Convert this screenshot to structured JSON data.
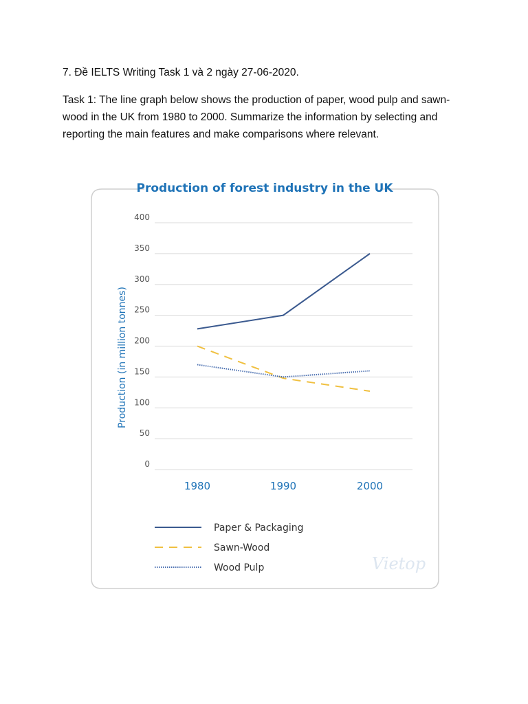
{
  "document": {
    "heading": "7. Đề IELTS Writing Task 1 và 2 ngày 27-06-2020.",
    "task_text": "Task 1: The line graph below shows the production of paper, wood pulp and sawn-wood in the UK from 1980 to 2000. Summarize the information by selecting and reporting the main features and make comparisons where relevant."
  },
  "chart_data": {
    "type": "line",
    "title": "Production of forest industry in the UK",
    "ylabel": "Production (in million tonnes)",
    "xlabel": "",
    "categories": [
      "1980",
      "1990",
      "2000"
    ],
    "ylim": [
      0,
      400
    ],
    "yticks": [
      0,
      50,
      100,
      150,
      200,
      250,
      300,
      350,
      400
    ],
    "grid": true,
    "legend_position": "bottom",
    "watermark": "Vietop",
    "series": [
      {
        "name": "Paper & Packaging",
        "values": [
          228,
          250,
          350
        ],
        "color": "#3b5a8f",
        "style": "solid"
      },
      {
        "name": "Sawn-Wood",
        "values": [
          200,
          148,
          127
        ],
        "color": "#f0c040",
        "style": "dashed"
      },
      {
        "name": "Wood Pulp",
        "values": [
          170,
          150,
          160
        ],
        "color": "#4a6fb0",
        "style": "dotted"
      }
    ],
    "colors": {
      "title": "#1f73b7",
      "axis_label": "#1f73b7",
      "tick": "#555555",
      "grid": "#e2e2e2",
      "frame": "#cfcfcf"
    }
  }
}
